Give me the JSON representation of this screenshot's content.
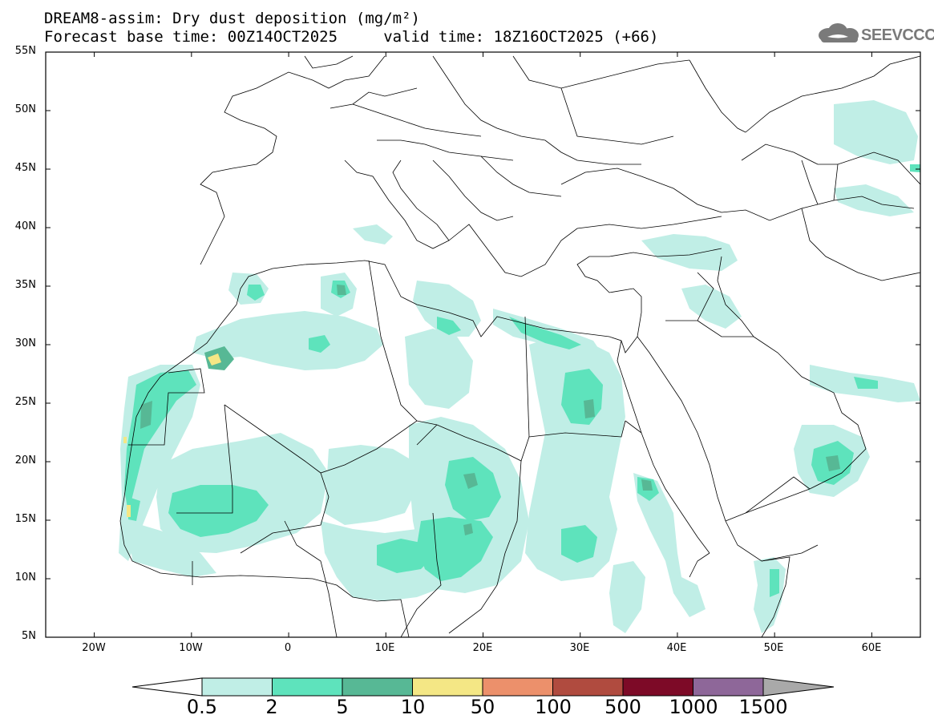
{
  "title": {
    "line1": "DREAM8-assim: Dry dust deposition (mg/m²)",
    "line2": "Forecast base time: 00Z14OCT2025     valid time: 18Z16OCT2025 (+66)"
  },
  "logo": {
    "text": "SEEVCCC",
    "icon": "cloud-icon"
  },
  "map": {
    "projection": "lat-lon",
    "lon_range": [
      -25,
      65
    ],
    "lat_range": [
      5,
      55
    ],
    "lat_ticks": [
      "5N",
      "10N",
      "15N",
      "20N",
      "25N",
      "30N",
      "35N",
      "40N",
      "45N",
      "50N",
      "55N"
    ],
    "lon_ticks": [
      "20W",
      "10W",
      "0",
      "10E",
      "20E",
      "30E",
      "40E",
      "50E",
      "60E"
    ]
  },
  "legend": {
    "levels": [
      "0.5",
      "2",
      "5",
      "10",
      "50",
      "100",
      "500",
      "1000",
      "1500"
    ],
    "colors": [
      "#c0eee6",
      "#5ee3bc",
      "#57b895",
      "#f4e785",
      "#ec906b",
      "#b04b3f",
      "#7d0a27",
      "#8e6799",
      "#a9a9a9"
    ],
    "under_color": "#ffffff",
    "over_color": "#a9a9a9"
  }
}
